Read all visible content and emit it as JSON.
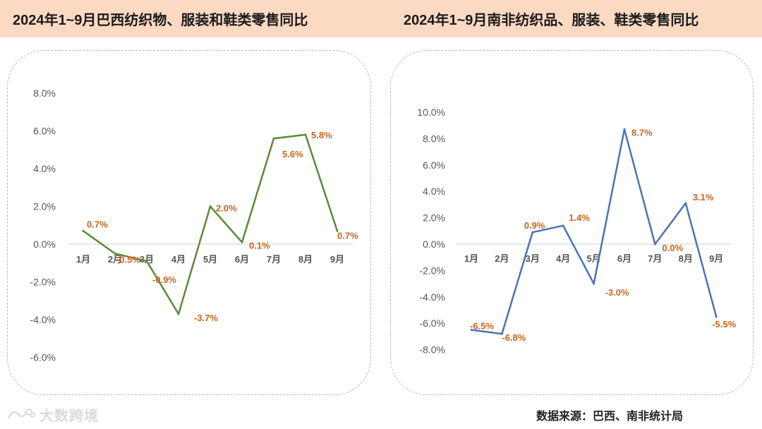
{
  "header": {
    "left_title": "2024年1~9月巴西纺织物、服装和鞋类零售同比",
    "right_title": "2024年1~9月南非纺织品、服装、鞋类零售同比"
  },
  "chart_data": [
    {
      "type": "line",
      "title": "2024年1~9月巴西纺织物、服装和鞋类零售同比",
      "categories": [
        "1月",
        "2月",
        "3月",
        "4月",
        "5月",
        "6月",
        "7月",
        "8月",
        "9月"
      ],
      "values": [
        0.7,
        -0.5,
        -0.9,
        -3.7,
        2.0,
        0.1,
        5.6,
        5.8,
        0.7
      ],
      "data_labels": [
        "0.7%",
        "-0.5%",
        "-0.9%",
        "-3.7%",
        "2.0%",
        "0.1%",
        "5.6%",
        "5.8%",
        "0.7%"
      ],
      "yticks": [
        8,
        6,
        4,
        2,
        0,
        -2,
        -4,
        -6
      ],
      "ytick_labels": [
        "8.0%",
        "6.0%",
        "4.0%",
        "2.0%",
        "0.0%",
        "-2.0%",
        "-4.0%",
        "-6.0%"
      ],
      "ylim": [
        -6,
        8
      ],
      "color": "#5b8a3a",
      "grid": false
    },
    {
      "type": "line",
      "title": "2024年1~9月南非纺织品、服装、鞋类零售同比",
      "categories": [
        "1月",
        "2月",
        "3月",
        "4月",
        "5月",
        "6月",
        "7月",
        "8月",
        "9月"
      ],
      "values": [
        -6.5,
        -6.8,
        0.9,
        1.4,
        -3.0,
        8.7,
        0.0,
        3.1,
        -5.5
      ],
      "data_labels": [
        "-6.5%",
        "-6.8%",
        "0.9%",
        "1.4%",
        "-3.0%",
        "8.7%",
        "0.0%",
        "3.1%",
        "-5.5%"
      ],
      "yticks": [
        10,
        8,
        6,
        4,
        2,
        0,
        -2,
        -4,
        -6,
        -8
      ],
      "ytick_labels": [
        "10.0%",
        "8.0%",
        "6.0%",
        "4.0%",
        "2.0%",
        "0.0%",
        "-2.0%",
        "-4.0%",
        "-6.0%",
        "-8.0%"
      ],
      "ylim": [
        -8,
        10
      ],
      "color": "#4a74b3",
      "grid": false
    }
  ],
  "footer": {
    "source": "数据来源：巴西、南非统计局",
    "logo_text": "大数跨境"
  }
}
